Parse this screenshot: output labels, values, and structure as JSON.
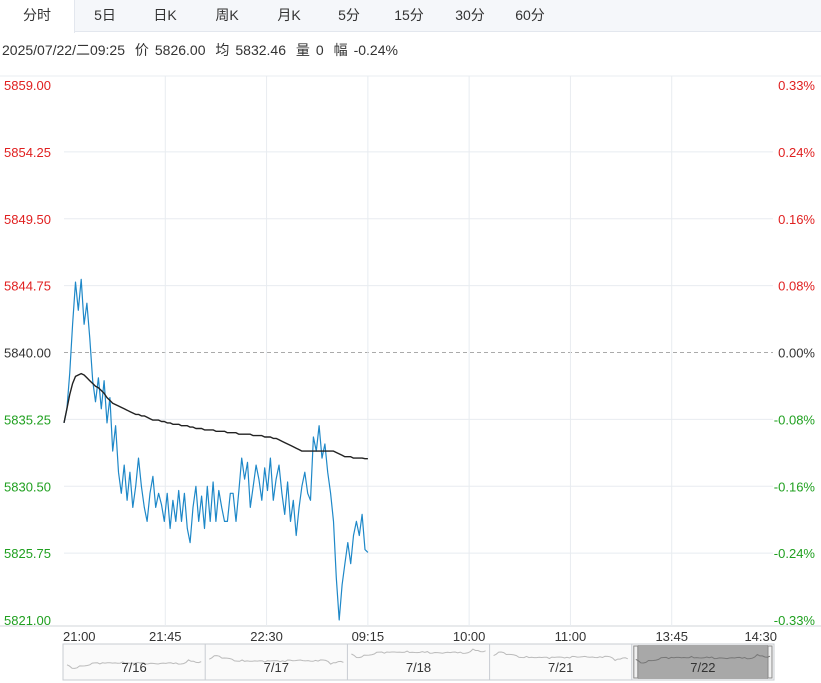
{
  "tabs": [
    {
      "label": "分时",
      "active": true
    },
    {
      "label": "5日",
      "active": false
    },
    {
      "label": "日K",
      "active": false
    },
    {
      "label": "周K",
      "active": false
    },
    {
      "label": "月K",
      "active": false
    },
    {
      "label": "5分",
      "active": false
    },
    {
      "label": "15分",
      "active": false
    },
    {
      "label": "30分",
      "active": false
    },
    {
      "label": "60分",
      "active": false
    }
  ],
  "info": {
    "datetime": "2025/07/22/二09:25",
    "price_label": "价",
    "price": "5826.00",
    "avg_label": "均",
    "avg": "5832.46",
    "vol_label": "量",
    "vol": "0",
    "chg_label": "幅",
    "chg": "-0.24%"
  },
  "colors": {
    "up": "#e02020",
    "down": "#20a020",
    "neutral": "#333333",
    "price_line": "#1e88c8",
    "avg_line": "#222222",
    "grid": "#e8ecf0"
  },
  "chart_data": {
    "type": "line",
    "title": "",
    "y_left_ticks": [
      "5859.00",
      "5854.25",
      "5849.50",
      "5844.75",
      "5840.00",
      "5835.25",
      "5830.50",
      "5825.75",
      "5821.00"
    ],
    "y_right_ticks": [
      "0.33%",
      "0.24%",
      "0.16%",
      "0.08%",
      "0.00%",
      "-0.08%",
      "-0.16%",
      "-0.24%",
      "-0.33%"
    ],
    "x_ticks": [
      "21:00",
      "21:45",
      "22:30",
      "09:15",
      "10:00",
      "11:00",
      "13:45",
      "14:30"
    ],
    "ylim": [
      5821.0,
      5859.0
    ],
    "prev_close": 5840.0,
    "series": [
      {
        "name": "价",
        "values": [
          5835.0,
          5836.0,
          5838.5,
          5842.0,
          5845.0,
          5843.0,
          5845.2,
          5842.0,
          5843.5,
          5841.0,
          5838.0,
          5836.5,
          5838.2,
          5836.0,
          5838.0,
          5835.0,
          5836.8,
          5833.0,
          5834.8,
          5831.5,
          5830.0,
          5832.0,
          5829.5,
          5831.5,
          5829.0,
          5830.5,
          5832.5,
          5830.5,
          5829.0,
          5828.0,
          5830.0,
          5831.2,
          5829.0,
          5830.0,
          5829.2,
          5828.0,
          5830.0,
          5827.5,
          5829.5,
          5828.0,
          5830.2,
          5828.0,
          5830.0,
          5827.5,
          5826.5,
          5829.0,
          5830.5,
          5828.0,
          5829.8,
          5827.5,
          5830.5,
          5828.0,
          5830.8,
          5828.0,
          5830.2,
          5829.0,
          5828.0,
          5828.0,
          5830.0,
          5830.0,
          5828.0,
          5830.2,
          5832.5,
          5831.0,
          5832.2,
          5829.0,
          5830.5,
          5832.0,
          5831.0,
          5829.5,
          5831.8,
          5830.2,
          5832.5,
          5829.5,
          5831.0,
          5832.0,
          5830.0,
          5828.5,
          5830.8,
          5828.0,
          5829.5,
          5827.0,
          5829.0,
          5830.5,
          5831.5,
          5830.0,
          5829.5,
          5834.0,
          5833.0,
          5834.8,
          5832.5,
          5833.5,
          5831.5,
          5830.0,
          5828.0,
          5824.0,
          5821.0,
          5823.5,
          5825.0,
          5826.5,
          5825.0,
          5827.0,
          5828.0,
          5827.0,
          5828.5,
          5826.0,
          5825.8
        ],
        "color": "#1e88c8"
      },
      {
        "name": "均",
        "values": [
          5835.0,
          5836.0,
          5837.0,
          5837.8,
          5838.3,
          5838.4,
          5838.5,
          5838.4,
          5838.2,
          5838.0,
          5837.8,
          5837.6,
          5837.5,
          5837.3,
          5837.1,
          5836.8,
          5836.6,
          5836.4,
          5836.3,
          5836.2,
          5836.1,
          5836.0,
          5835.9,
          5835.8,
          5835.7,
          5835.6,
          5835.6,
          5835.5,
          5835.5,
          5835.4,
          5835.3,
          5835.2,
          5835.2,
          5835.2,
          5835.1,
          5835.1,
          5835.0,
          5835.0,
          5834.9,
          5834.9,
          5834.9,
          5834.8,
          5834.8,
          5834.8,
          5834.7,
          5834.7,
          5834.6,
          5834.6,
          5834.6,
          5834.5,
          5834.5,
          5834.5,
          5834.5,
          5834.4,
          5834.4,
          5834.4,
          5834.4,
          5834.3,
          5834.3,
          5834.3,
          5834.3,
          5834.2,
          5834.2,
          5834.2,
          5834.2,
          5834.2,
          5834.1,
          5834.1,
          5834.1,
          5834.1,
          5834.0,
          5834.0,
          5834.0,
          5833.9,
          5833.9,
          5833.8,
          5833.7,
          5833.6,
          5833.5,
          5833.4,
          5833.3,
          5833.2,
          5833.1,
          5833.0,
          5833.0,
          5833.0,
          5833.0,
          5833.0,
          5833.0,
          5833.0,
          5833.0,
          5833.0,
          5833.0,
          5833.0,
          5833.0,
          5832.9,
          5832.8,
          5832.7,
          5832.6,
          5832.6,
          5832.6,
          5832.5,
          5832.5,
          5832.5,
          5832.5,
          5832.46,
          5832.46
        ],
        "color": "#222222"
      }
    ],
    "navigator": {
      "labels": [
        "7/16",
        "7/17",
        "7/18",
        "7/21",
        "7/22"
      ],
      "selected": "7/22"
    }
  }
}
